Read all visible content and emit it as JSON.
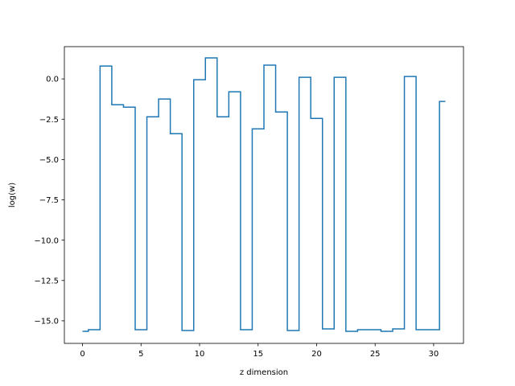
{
  "chart_data": {
    "type": "line",
    "drawstyle": "steps-mid",
    "xlabel": "z dimension",
    "ylabel": "log(w)",
    "xlim": [
      -1.55,
      32.55
    ],
    "ylim": [
      -16.4,
      2.0
    ],
    "xticks": [
      0,
      5,
      10,
      15,
      20,
      25,
      30
    ],
    "yticks": [
      0.0,
      -2.5,
      -5.0,
      -7.5,
      -10.0,
      -12.5,
      -15.0
    ],
    "xtick_labels": [
      "0",
      "5",
      "10",
      "15",
      "20",
      "25",
      "30"
    ],
    "ytick_labels": [
      "0.0",
      "−2.5",
      "−5.0",
      "−7.5",
      "−10.0",
      "−12.5",
      "−15.0"
    ],
    "grid": false,
    "series": [
      {
        "color": "#1f77b4",
        "x": [
          0,
          1,
          2,
          3,
          4,
          5,
          6,
          7,
          8,
          9,
          10,
          11,
          12,
          13,
          14,
          15,
          16,
          17,
          18,
          19,
          20,
          21,
          22,
          23,
          24,
          25,
          26,
          27,
          28,
          29,
          30,
          31
        ],
        "y": [
          -15.65,
          -15.55,
          0.8,
          -1.6,
          -1.75,
          -15.55,
          -2.35,
          -1.25,
          -3.4,
          -15.6,
          -0.05,
          1.3,
          -2.35,
          -0.8,
          -15.55,
          -3.1,
          0.85,
          -2.05,
          -15.6,
          0.1,
          -2.45,
          -15.5,
          0.1,
          -15.65,
          -15.55,
          -15.55,
          -15.65,
          -15.5,
          0.15,
          -15.55,
          -15.55,
          -1.4
        ]
      }
    ]
  }
}
